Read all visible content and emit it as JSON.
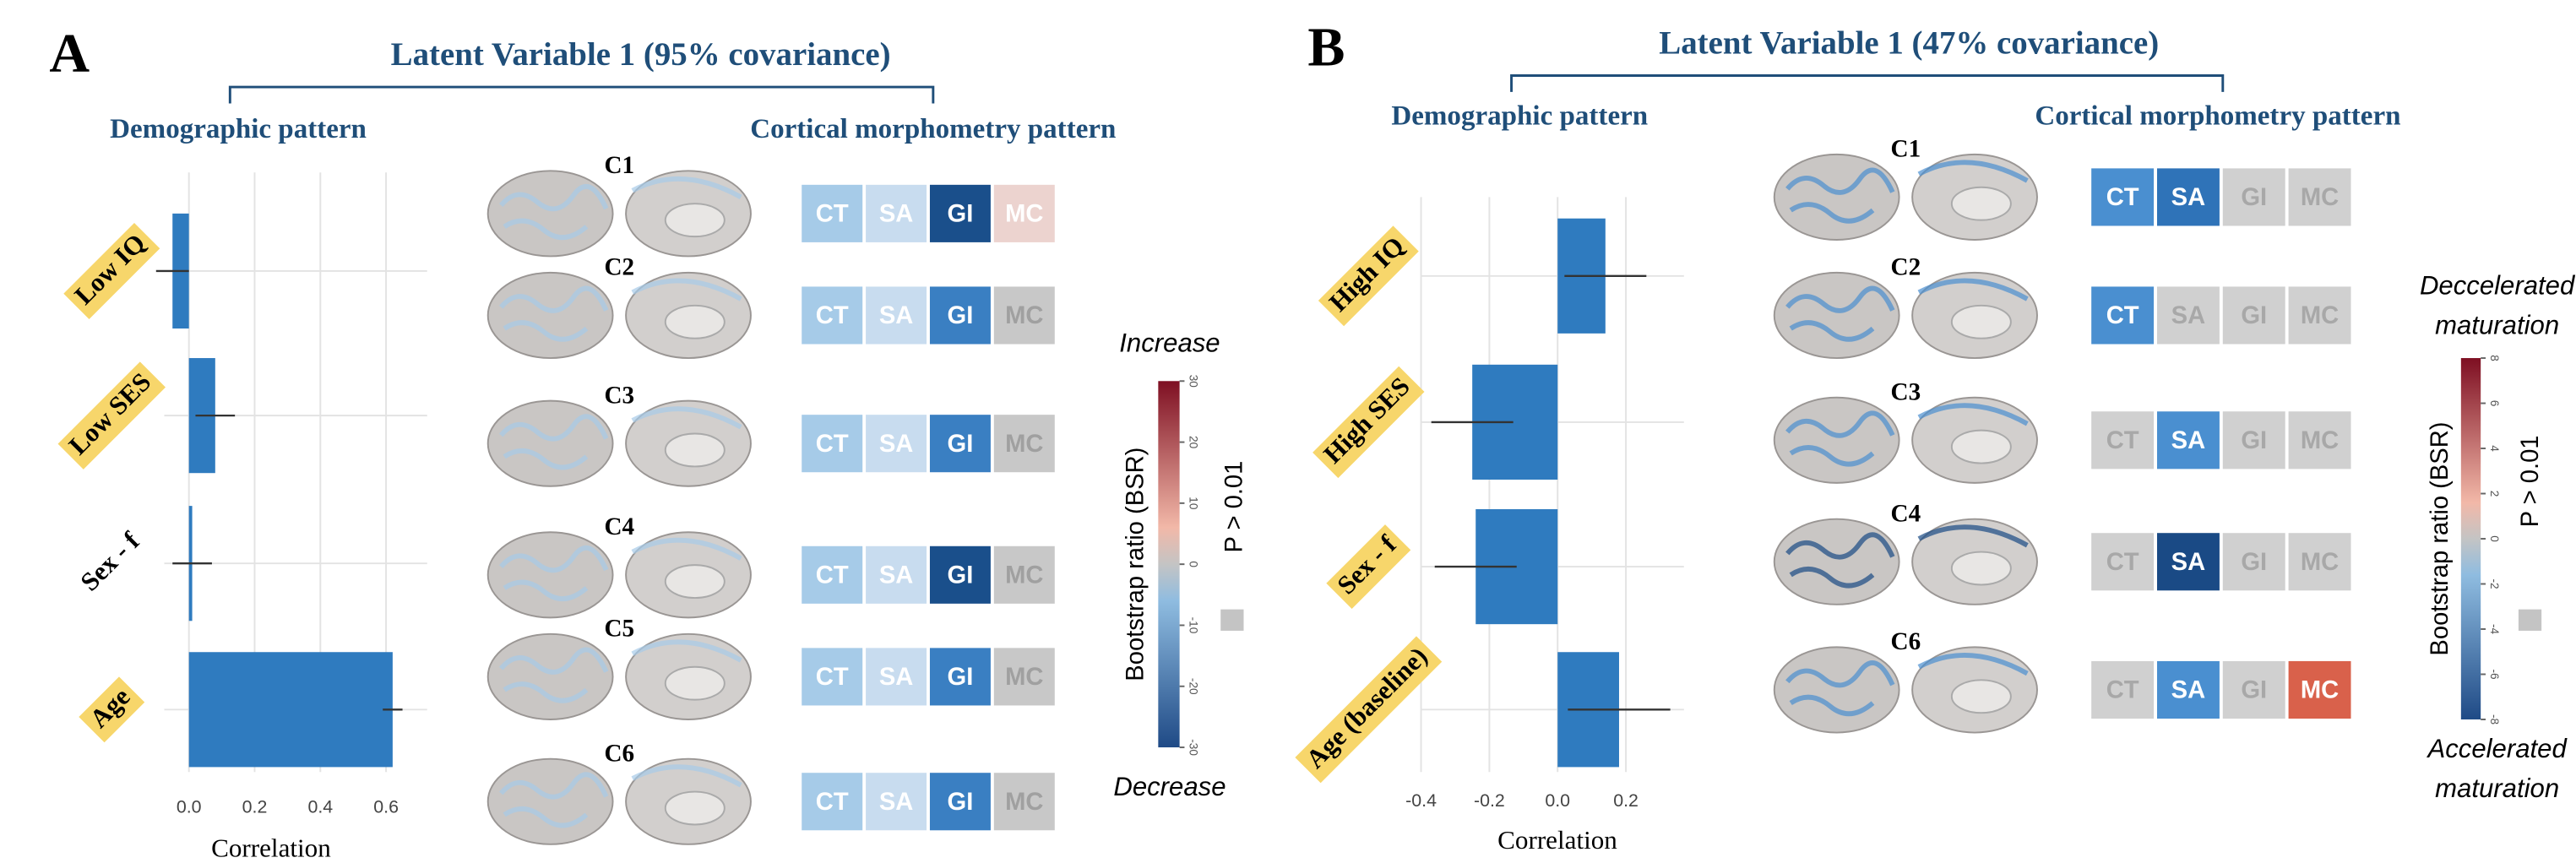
{
  "panels": [
    {
      "label": "A",
      "title": "Latent Variable 1 (95% covariance)",
      "demographic_heading": "Demographic pattern",
      "cortical_heading": "Cortical morphometry pattern",
      "components": [
        {
          "label": "C1",
          "tiles": [
            {
              "text": "CT",
              "fill": "#a6cbe8",
              "ink": "#ffffff"
            },
            {
              "text": "SA",
              "fill": "#c8dcef",
              "ink": "#ffffff"
            },
            {
              "text": "GI",
              "fill": "#1a4f8b",
              "ink": "#ffffff"
            },
            {
              "text": "MC",
              "fill": "#ecd3cf",
              "ink": "#ffffff"
            }
          ]
        },
        {
          "label": "C2",
          "tiles": [
            {
              "text": "CT",
              "fill": "#a6cbe8",
              "ink": "#ffffff"
            },
            {
              "text": "SA",
              "fill": "#c8dcef",
              "ink": "#ffffff"
            },
            {
              "text": "GI",
              "fill": "#3a7fc2",
              "ink": "#ffffff"
            },
            {
              "text": "MC",
              "fill": "#c8c8c8",
              "ink": "#a0a0a0"
            }
          ]
        },
        {
          "label": "C3",
          "tiles": [
            {
              "text": "CT",
              "fill": "#a6cbe8",
              "ink": "#ffffff"
            },
            {
              "text": "SA",
              "fill": "#c8dcef",
              "ink": "#ffffff"
            },
            {
              "text": "GI",
              "fill": "#3a7fc2",
              "ink": "#ffffff"
            },
            {
              "text": "MC",
              "fill": "#c8c8c8",
              "ink": "#a0a0a0"
            }
          ]
        },
        {
          "label": "C4",
          "tiles": [
            {
              "text": "CT",
              "fill": "#a6cbe8",
              "ink": "#ffffff"
            },
            {
              "text": "SA",
              "fill": "#c8dcef",
              "ink": "#ffffff"
            },
            {
              "text": "GI",
              "fill": "#1a4f8b",
              "ink": "#ffffff"
            },
            {
              "text": "MC",
              "fill": "#c8c8c8",
              "ink": "#a0a0a0"
            }
          ]
        },
        {
          "label": "C5",
          "tiles": [
            {
              "text": "CT",
              "fill": "#a6cbe8",
              "ink": "#ffffff"
            },
            {
              "text": "SA",
              "fill": "#c8dcef",
              "ink": "#ffffff"
            },
            {
              "text": "GI",
              "fill": "#3a7fc2",
              "ink": "#ffffff"
            },
            {
              "text": "MC",
              "fill": "#c8c8c8",
              "ink": "#a0a0a0"
            }
          ]
        },
        {
          "label": "C6",
          "tiles": [
            {
              "text": "CT",
              "fill": "#a6cbe8",
              "ink": "#ffffff"
            },
            {
              "text": "SA",
              "fill": "#c8dcef",
              "ink": "#ffffff"
            },
            {
              "text": "GI",
              "fill": "#3a7fc2",
              "ink": "#ffffff"
            },
            {
              "text": "MC",
              "fill": "#c8c8c8",
              "ink": "#a0a0a0"
            }
          ]
        }
      ],
      "colorbar": {
        "top_label": [
          "Increase"
        ],
        "bottom_label": [
          "Decrease"
        ],
        "title": "Bootstrap ratio (BSR)",
        "legend": "P > 0.01",
        "ticks": [
          -30,
          -20,
          -10,
          0,
          10,
          20,
          30
        ],
        "colors": [
          "#1f4a86",
          "#8fbce0",
          "#c4c4c4",
          "#f2b8a8",
          "#7e0f22"
        ]
      }
    },
    {
      "label": "B",
      "title": "Latent Variable 1 (47% covariance)",
      "demographic_heading": "Demographic pattern",
      "cortical_heading": "Cortical morphometry pattern",
      "components": [
        {
          "label": "C1",
          "tiles": [
            {
              "text": "CT",
              "fill": "#4a8fd0",
              "ink": "#ffffff"
            },
            {
              "text": "SA",
              "fill": "#2f73b8",
              "ink": "#ffffff"
            },
            {
              "text": "GI",
              "fill": "#d0d0d0",
              "ink": "#a8a8a8"
            },
            {
              "text": "MC",
              "fill": "#d0d0d0",
              "ink": "#a8a8a8"
            }
          ]
        },
        {
          "label": "C2",
          "tiles": [
            {
              "text": "CT",
              "fill": "#4a8fd0",
              "ink": "#ffffff"
            },
            {
              "text": "SA",
              "fill": "#d0d0d0",
              "ink": "#a8a8a8"
            },
            {
              "text": "GI",
              "fill": "#d0d0d0",
              "ink": "#a8a8a8"
            },
            {
              "text": "MC",
              "fill": "#d0d0d0",
              "ink": "#a8a8a8"
            }
          ]
        },
        {
          "label": "C3",
          "tiles": [
            {
              "text": "CT",
              "fill": "#d0d0d0",
              "ink": "#a8a8a8"
            },
            {
              "text": "SA",
              "fill": "#4a8fd0",
              "ink": "#ffffff"
            },
            {
              "text": "GI",
              "fill": "#d0d0d0",
              "ink": "#a8a8a8"
            },
            {
              "text": "MC",
              "fill": "#d0d0d0",
              "ink": "#a8a8a8"
            }
          ]
        },
        {
          "label": "C4",
          "tiles": [
            {
              "text": "CT",
              "fill": "#d0d0d0",
              "ink": "#a8a8a8"
            },
            {
              "text": "SA",
              "fill": "#1a4a85",
              "ink": "#ffffff"
            },
            {
              "text": "GI",
              "fill": "#d0d0d0",
              "ink": "#a8a8a8"
            },
            {
              "text": "MC",
              "fill": "#d0d0d0",
              "ink": "#a8a8a8"
            }
          ]
        },
        {
          "label": "C6",
          "tiles": [
            {
              "text": "CT",
              "fill": "#d0d0d0",
              "ink": "#a8a8a8"
            },
            {
              "text": "SA",
              "fill": "#4a8fd0",
              "ink": "#ffffff"
            },
            {
              "text": "GI",
              "fill": "#d0d0d0",
              "ink": "#a8a8a8"
            },
            {
              "text": "MC",
              "fill": "#d9614b",
              "ink": "#ffffff"
            }
          ]
        }
      ],
      "colorbar": {
        "top_label": [
          "Deccelerated",
          "maturation"
        ],
        "bottom_label": [
          "Accelerated",
          "maturation"
        ],
        "title": "Bootstrap ratio (BSR)",
        "legend": "P > 0.01",
        "ticks": [
          -8,
          -6,
          -4,
          -2,
          0,
          2,
          4,
          6,
          8
        ],
        "colors": [
          "#1f4a86",
          "#8fbce0",
          "#c4c4c4",
          "#f2b8a8",
          "#7e0f22"
        ]
      }
    }
  ],
  "chart_data": [
    {
      "type": "bar",
      "orientation": "horizontal",
      "x_label": "Correlation",
      "categories": [
        "Low IQ",
        "Low SES",
        "Sex - f",
        "Age"
      ],
      "label_highlight": [
        true,
        true,
        false,
        true
      ],
      "values": [
        -0.05,
        0.08,
        0.01,
        0.62
      ],
      "errors": [
        0.05,
        0.06,
        0.06,
        0.03
      ],
      "color": "#2f7bbf",
      "xlim": [
        -0.075,
        0.725
      ],
      "xticks": [
        {
          "value": 0,
          "label": "0.0"
        },
        {
          "value": 0.2,
          "label": "0.2"
        },
        {
          "value": 0.4,
          "label": "0.4"
        },
        {
          "value": 0.6,
          "label": "0.6"
        }
      ],
      "grid": true
    },
    {
      "type": "bar",
      "orientation": "horizontal",
      "x_label": "Correlation",
      "categories": [
        "High IQ",
        "High SES",
        "Sex - f",
        "Age (baseline)"
      ],
      "label_highlight": [
        true,
        true,
        true,
        true
      ],
      "values": [
        0.14,
        -0.25,
        -0.24,
        0.18
      ],
      "errors": [
        0.12,
        0.12,
        0.12,
        0.15
      ],
      "color": "#2f7bbf",
      "xlim": [
        -0.4,
        0.37
      ],
      "xticks": [
        {
          "value": -0.4,
          "label": "-0.4"
        },
        {
          "value": -0.2,
          "label": "-0.2"
        },
        {
          "value": 0,
          "label": "0.0"
        },
        {
          "value": 0.2,
          "label": "0.2"
        }
      ],
      "grid": true
    }
  ]
}
